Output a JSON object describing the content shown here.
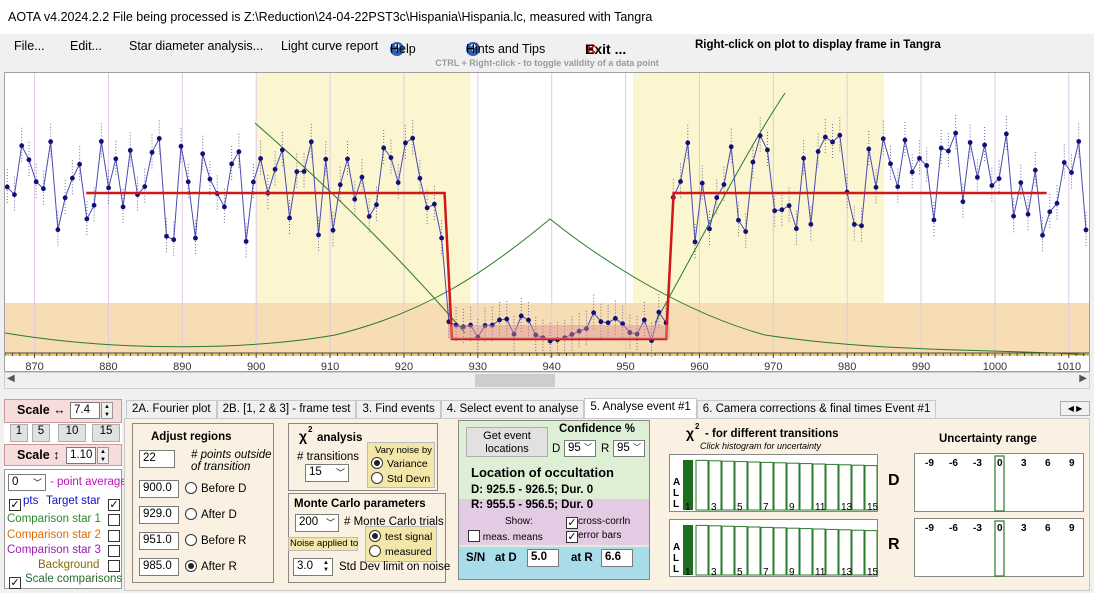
{
  "window": {
    "title": "AOTA v4.2024.2.2   File being processed is Z:\\Reduction\\24-04-22PST3c\\Hispania\\Hispania.lc, measured with Tangra"
  },
  "menu": {
    "file": "File...",
    "edit": "Edit...",
    "star_diameter": "Star diameter analysis...",
    "light_curve_report": "Light curve report",
    "help": "Help",
    "hints": "Hints and Tips",
    "exit": "Exit ...",
    "right_click_hint": "Right-click on plot to display frame in Tangra",
    "ctrl_hint": "CTRL + Right-click  -  to toggle validity of a data point"
  },
  "plot": {
    "x_ticks": [
      "870",
      "880",
      "890",
      "900",
      "910",
      "920",
      "930",
      "940",
      "950",
      "960",
      "970",
      "980",
      "990",
      "1000",
      "1010"
    ]
  },
  "chart_data": {
    "type": "line",
    "x_range": [
      866,
      1013
    ],
    "baseline_level": "high",
    "event_level": "low",
    "model_segments": [
      {
        "x": [
          877,
          925.5
        ],
        "level": "baseline"
      },
      {
        "x": [
          926.5,
          955.5
        ],
        "level": "event"
      },
      {
        "x": [
          956.5,
          1007
        ],
        "level": "baseline"
      }
    ],
    "selection_regions": [
      {
        "x": [
          900,
          929
        ]
      },
      {
        "x": [
          951,
          985
        ]
      }
    ]
  },
  "left_panel": {
    "scale_h_label": "Scale ↔",
    "scale_h_value": "7.4",
    "zoom_buttons": [
      "1",
      "5",
      "10",
      "15"
    ],
    "scale_v_label": "Scale ↕",
    "scale_v_value": "1.10",
    "point_avg_value": "0",
    "point_avg_label": "- point average",
    "pts_label": "pts",
    "target_label": "Target star",
    "comp1": "Comparison star 1",
    "comp2": "Comparison star 2",
    "comp3": "Comparison star 3",
    "background": "Background",
    "scale_comparisons": "Scale comparisons",
    "colors": {
      "target": "#1010c8",
      "comp1": "#2a8a2a",
      "comp2": "#e06a00",
      "comp3": "#9a20b0",
      "background": "#8a6a00"
    }
  },
  "tabs": [
    "2A. Fourier plot",
    "2B. [1, 2 & 3] - frame test",
    "3. Find events",
    "4. Select event to analyse",
    "5. Analyse event #1",
    "6. Camera corrections & final times Event #1"
  ],
  "adjust": {
    "title": "Adjust regions",
    "points_value": "22",
    "points_label_1": "# points outside",
    "points_label_2": "of transition",
    "rows": [
      {
        "value": "900.0",
        "label": "Before D",
        "selected": false
      },
      {
        "value": "929.0",
        "label": "After D",
        "selected": false
      },
      {
        "value": "951.0",
        "label": "Before R",
        "selected": false
      },
      {
        "value": "985.0",
        "label": "After R",
        "selected": true
      }
    ]
  },
  "chi2": {
    "title": "analysis",
    "transitions_label": "# transitions",
    "transitions_value": "15",
    "vary_label_1": "Vary noise by",
    "vary_label_2": "",
    "variance": "Variance",
    "std_devn": "Std Devn"
  },
  "monte_carlo": {
    "title": "Monte Carlo parameters",
    "trials_value": "200",
    "trials_label": "# Monte Carlo trials",
    "noise_applied": "Noise applied to",
    "test_signal": "test signal",
    "measured": "measured",
    "std_limit_value": "3.0",
    "std_limit_label": "Std Dev limit on noise"
  },
  "location": {
    "get_event_1": "Get event",
    "get_event_2": "locations",
    "confidence_label": "Confidence %",
    "d_label": "D",
    "d_value": "95",
    "r_label": "R",
    "r_value": "95",
    "title": "Location of occultation",
    "d_line": "D: 925.5 - 926.5; Dur. 0",
    "r_line": "R: 955.5 - 956.5; Dur. 0",
    "show_label": "Show:",
    "meas_means": "meas. means",
    "cross_corr": "cross-corrln",
    "error_bars": "error bars",
    "sn_label": "S/N",
    "at_d_label": "at D",
    "at_d_value": "5.0",
    "at_r_label": "at R",
    "at_r_value": "6.6"
  },
  "chi2_hist": {
    "title": "- for different transitions",
    "subtitle": "Click histogram for uncertainty",
    "axis_letters": [
      "A",
      "L",
      "L"
    ],
    "x_labels": [
      "1",
      "3",
      "5",
      "7",
      "9",
      "11",
      "13",
      "15"
    ],
    "d_label": "D",
    "r_label": "R"
  },
  "uncertainty": {
    "title": "Uncertainty range",
    "ticks": [
      "-9",
      "-6",
      "-3",
      "0",
      "3",
      "6",
      "9"
    ]
  }
}
